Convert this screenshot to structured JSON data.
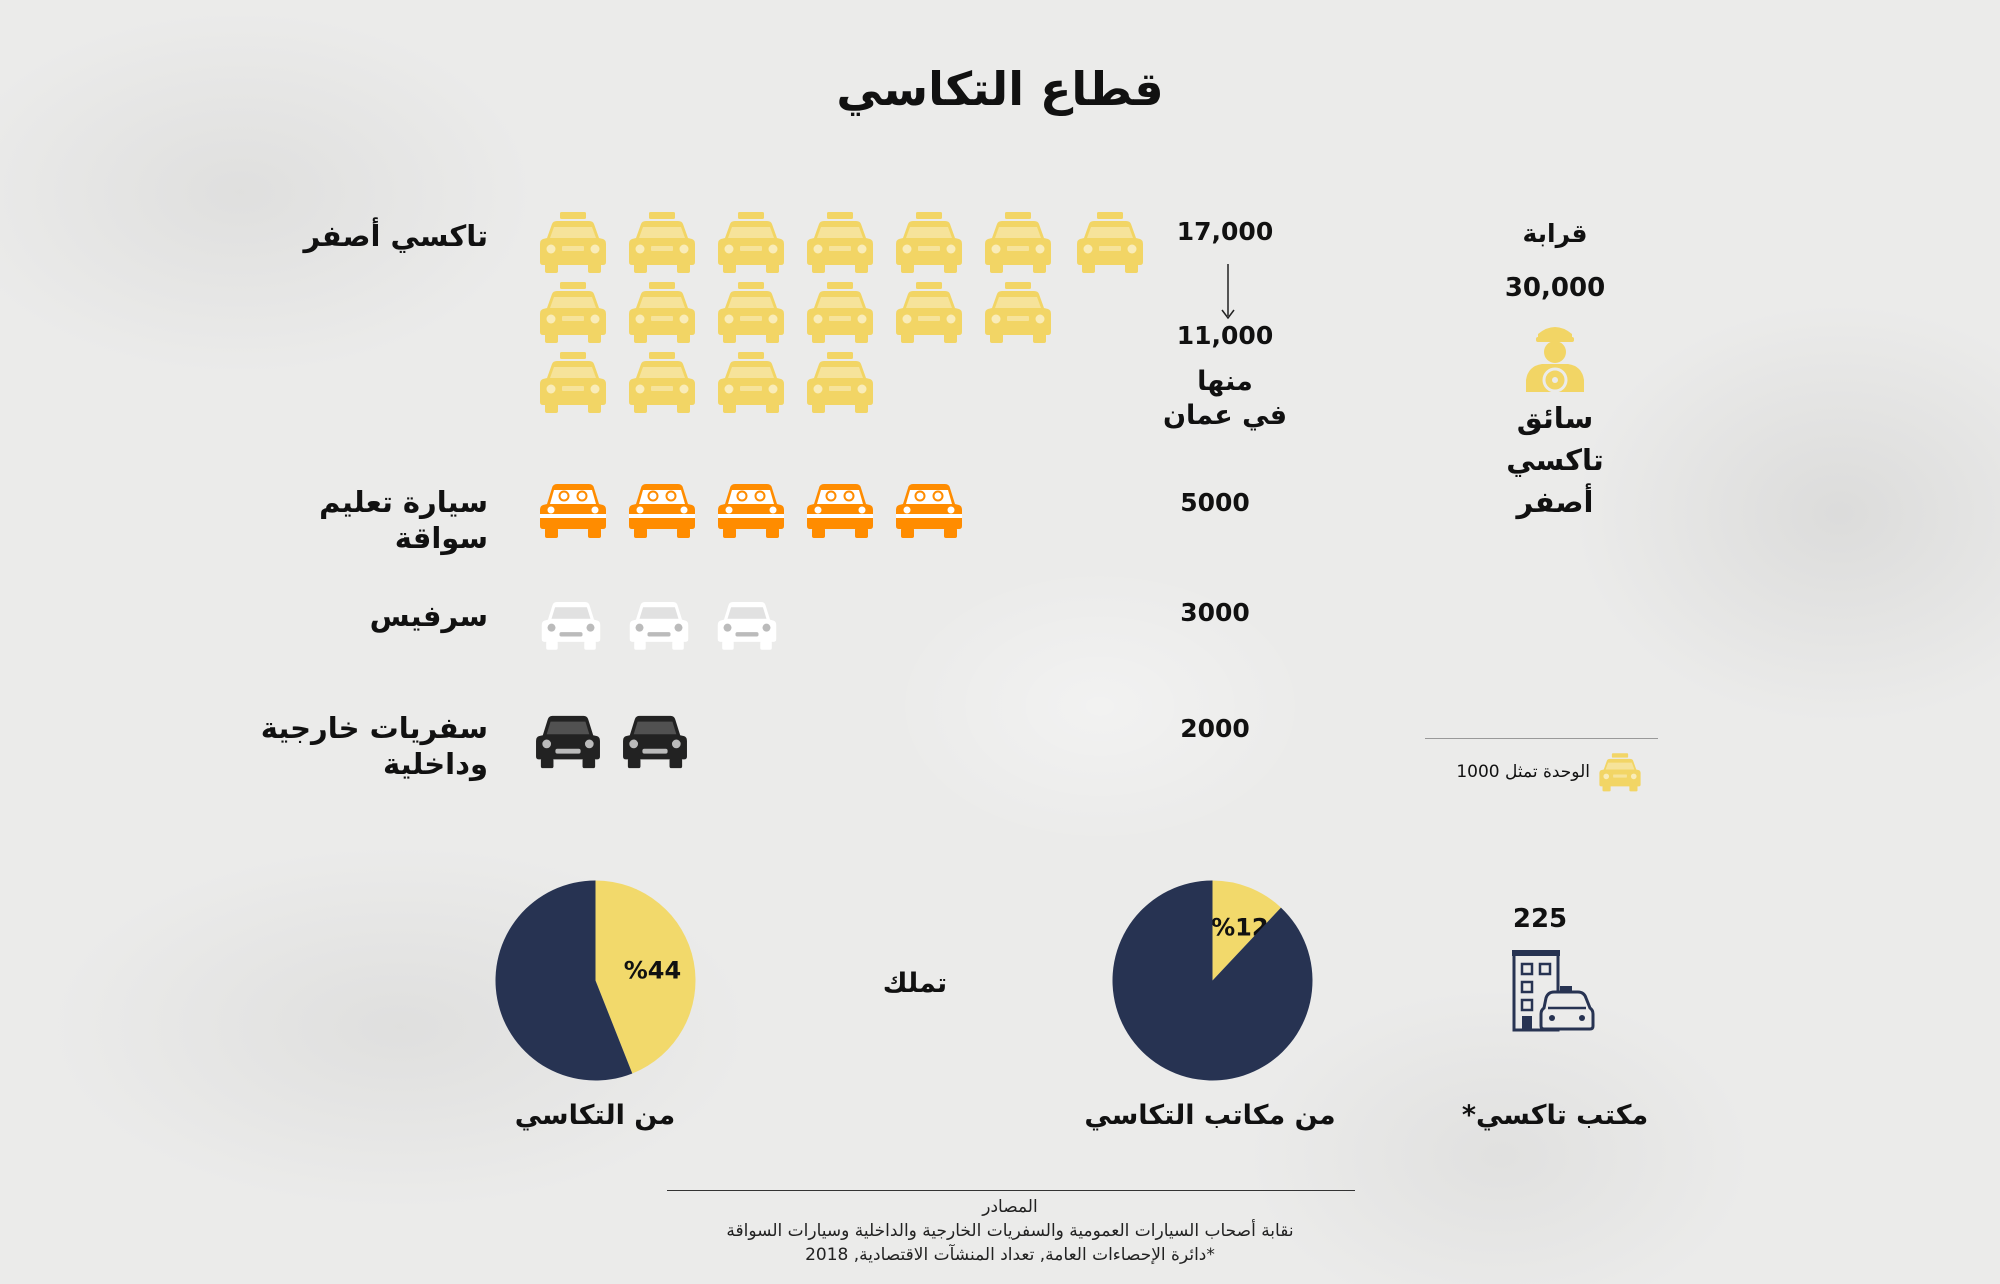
{
  "title": "قطاع التكاسي",
  "rows": {
    "yellow_taxi": {
      "label": "تاكسي أصفر",
      "total": "17,000",
      "amman": "11,000",
      "amman_note_1": "منها",
      "amman_note_2": "في عمان"
    },
    "driving_school": {
      "label_1": "سيارة تعليم",
      "label_2": "سواقة",
      "value": "5000"
    },
    "service": {
      "label": "سرفيس",
      "value": "3000"
    },
    "trips": {
      "label_1": "سفريات خارجية",
      "label_2": "وداخلية",
      "value": "2000"
    }
  },
  "drivers": {
    "prefix": "قرابة",
    "value": "30,000",
    "line1": "سائق",
    "line2": "تاكسي",
    "line3": "أصفر"
  },
  "legend": {
    "text": "الوحدة تمثل 1000"
  },
  "offices": {
    "value": "225",
    "label": "مكتب تاكسي*"
  },
  "own_label": "تملك",
  "pies": {
    "offices_pie": {
      "percent_label": "%12",
      "caption": "من مكاتب التكاسي"
    },
    "taxis_pie": {
      "percent_label": "%44",
      "caption": "من التكاسي"
    }
  },
  "sources": {
    "heading": "المصادر",
    "line1": "نقابة أصحاب السيارات العمومية والسفريات الخارجية والداخلية وسيارات السواقة",
    "line2": "*دائرة الإحصاءات العامة, تعداد المنشآت الاقتصادية, 2018"
  },
  "chart_data": [
    {
      "type": "bar",
      "unit": "الوحدة تمثل 1000",
      "categories": [
        "تاكسي أصفر",
        "سيارة تعليم سواقة",
        "سرفيس",
        "سفريات خارجية وداخلية"
      ],
      "values": [
        17000,
        5000,
        3000,
        2000
      ],
      "colors": [
        "#f2d565",
        "#ff8c00",
        "#ffffff",
        "#222222"
      ]
    },
    {
      "type": "pie",
      "caption": "من مكاتب التكاسي",
      "values": [
        12,
        88
      ],
      "labels": [
        "%12",
        ""
      ],
      "colors": [
        "#f2d96b",
        "#273352"
      ]
    },
    {
      "type": "pie",
      "caption": "من التكاسي",
      "values": [
        44,
        56
      ],
      "labels": [
        "%44",
        ""
      ],
      "colors": [
        "#f2d96b",
        "#273352"
      ]
    }
  ],
  "colors": {
    "taxi": "#f2d565",
    "school": "#ff8c00",
    "service": "#ffffff",
    "trips": "#222222",
    "navy": "#273352",
    "pie_yellow": "#f2d96b"
  },
  "icons": {
    "car": "taxi-car-icon",
    "driver": "driver-icon",
    "office": "taxi-office-icon",
    "arrow": "down-arrow-icon"
  }
}
